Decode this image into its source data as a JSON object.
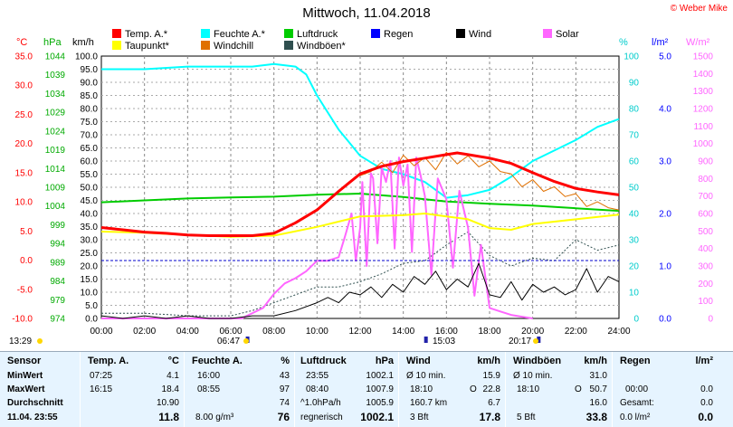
{
  "title": "Mittwoch, 11.04.2018",
  "copyright": "© Weber Mike",
  "colors": {
    "temp": "#ff0000",
    "humidity": "#00ffff",
    "pressure": "#00cc00",
    "rain": "#0000ff",
    "wind": "#000000",
    "solar": "#ff66ff",
    "dewpoint": "#ffff00",
    "windchill": "#e07000",
    "gust": "#2f4f4f"
  },
  "legend": [
    {
      "label": "Temp. A.*",
      "color": "#ff0000"
    },
    {
      "label": "Feuchte A.*",
      "color": "#00ffff"
    },
    {
      "label": "Luftdruck",
      "color": "#00cc00"
    },
    {
      "label": "Regen",
      "color": "#0000ff"
    },
    {
      "label": "Wind",
      "color": "#000000"
    },
    {
      "label": "Solar",
      "color": "#ff66ff"
    },
    {
      "label": "Taupunkt*",
      "color": "#ffff00"
    },
    {
      "label": "Windchill",
      "color": "#e07000"
    },
    {
      "label": "Windböen*",
      "color": "#2f4f4f"
    }
  ],
  "axis_units": {
    "temp": "°C",
    "pressure": "hPa",
    "wind": "km/h",
    "humidity": "%",
    "rain": "l/m²",
    "solar": "W/m²"
  },
  "time_marks": {
    "sunrise": "06:47",
    "sunset": "20:17",
    "mark_left": "13:29",
    "mark_mid": "15:03"
  },
  "chart_data": {
    "type": "line",
    "x_ticks": [
      "00:00",
      "02:00",
      "04:00",
      "06:00",
      "08:00",
      "10:00",
      "12:00",
      "14:00",
      "16:00",
      "18:00",
      "20:00",
      "22:00",
      "24:00"
    ],
    "xlim": [
      0,
      24
    ],
    "axes": {
      "temp": {
        "ylim": [
          -10,
          35
        ],
        "ticks": [
          "35.0",
          "30.0",
          "25.0",
          "20.0",
          "15.0",
          "10.0",
          "5.0",
          "0.0",
          "-5.0",
          "-10.0"
        ]
      },
      "pressure": {
        "ylim": [
          974,
          1044
        ],
        "ticks": [
          "1044",
          "1039",
          "1034",
          "1029",
          "1024",
          "1019",
          "1014",
          "1009",
          "1004",
          "999",
          "994",
          "989",
          "984",
          "979",
          "974"
        ]
      },
      "wind": {
        "ylim": [
          0,
          100
        ],
        "ticks": [
          "100.0",
          "95.0",
          "90.0",
          "85.0",
          "80.0",
          "75.0",
          "70.0",
          "65.0",
          "60.0",
          "55.0",
          "50.0",
          "45.0",
          "40.0",
          "35.0",
          "30.0",
          "25.0",
          "20.0",
          "15.0",
          "10.0",
          "5.0",
          "0.0"
        ]
      },
      "humidity": {
        "ylim": [
          0,
          100
        ],
        "ticks": [
          "100",
          "90",
          "80",
          "70",
          "60",
          "50",
          "40",
          "30",
          "20",
          "10",
          "0"
        ]
      },
      "rain": {
        "ylim": [
          0,
          5
        ],
        "ticks": [
          "5.0",
          "4.0",
          "3.0",
          "2.0",
          "1.0",
          "0.0"
        ]
      },
      "solar": {
        "ylim": [
          0,
          1500
        ],
        "ticks": [
          "1500",
          "1400",
          "1300",
          "1200",
          "1100",
          "1000",
          "900",
          "800",
          "700",
          "600",
          "500",
          "400",
          "300",
          "200",
          "100",
          "0"
        ]
      }
    },
    "series": [
      {
        "name": "Temp. A.*",
        "axis": "temp",
        "color": "#ff0000",
        "width": 3,
        "x": [
          0,
          1,
          2,
          3,
          4,
          5,
          6,
          7,
          7.5,
          8,
          9,
          10,
          11,
          12,
          13,
          14,
          15,
          16,
          16.5,
          17,
          18,
          19,
          20,
          21,
          22,
          23,
          24
        ],
        "y": [
          5.6,
          5.2,
          4.8,
          4.6,
          4.3,
          4.2,
          4.2,
          4.2,
          4.4,
          4.6,
          6.4,
          8.6,
          11.8,
          14.8,
          16.1,
          16.9,
          17.5,
          18.1,
          18.4,
          18.1,
          17.5,
          16.6,
          15.0,
          13.5,
          12.3,
          11.7,
          11.2
        ]
      },
      {
        "name": "Feuchte A.*",
        "axis": "humidity",
        "color": "#00ffff",
        "width": 2,
        "x": [
          0,
          2,
          4,
          6,
          7,
          8,
          9,
          9.5,
          10,
          11,
          12,
          13,
          14,
          15,
          16,
          17,
          18,
          19,
          20,
          21,
          22,
          23,
          24
        ],
        "y": [
          95,
          95,
          96,
          96,
          96,
          97,
          96,
          93,
          85,
          72,
          62,
          57,
          55,
          52,
          46,
          47,
          49,
          54,
          60,
          64,
          68,
          73,
          76
        ]
      },
      {
        "name": "Luftdruck",
        "axis": "pressure",
        "color": "#00cc00",
        "width": 2,
        "x": [
          0,
          2,
          4,
          6,
          8,
          10,
          12,
          14,
          16,
          18,
          20,
          22,
          24
        ],
        "y": [
          1005.0,
          1005.5,
          1006.0,
          1006.3,
          1006.5,
          1007.0,
          1007.3,
          1006.4,
          1005.2,
          1004.6,
          1004.1,
          1003.4,
          1002.7
        ]
      },
      {
        "name": "Taupunkt*",
        "axis": "temp",
        "color": "#ffff00",
        "width": 2,
        "x": [
          0,
          2,
          4,
          6,
          8,
          10,
          12,
          14,
          15,
          16,
          17,
          18,
          19,
          20,
          22,
          24
        ],
        "y": [
          4.9,
          4.7,
          4.3,
          4.0,
          4.2,
          5.7,
          7.5,
          7.7,
          8.0,
          7.5,
          7.0,
          5.5,
          5.2,
          6.2,
          7.0,
          7.8
        ]
      },
      {
        "name": "Windchill",
        "axis": "temp",
        "color": "#e07000",
        "width": 1,
        "x": [
          12,
          12.5,
          13,
          13.5,
          14,
          14.5,
          15,
          15.5,
          16,
          16.5,
          17,
          17.5,
          18,
          18.5,
          19,
          19.5,
          20,
          20.5,
          21,
          21.5,
          22,
          22.5,
          23,
          23.5,
          24
        ],
        "y": [
          14.5,
          15.2,
          16.8,
          15.0,
          18.0,
          16.2,
          17.6,
          15.5,
          18.5,
          16.5,
          17.9,
          16.0,
          17.0,
          15.2,
          14.8,
          12.6,
          13.8,
          11.8,
          12.6,
          10.9,
          11.4,
          9.2,
          10.0,
          9.0,
          8.6
        ]
      },
      {
        "name": "Windböen*",
        "axis": "wind",
        "color": "#2f4f4f",
        "width": 1,
        "dashed": true,
        "x": [
          0,
          2,
          4,
          6,
          7,
          8,
          9,
          10,
          11,
          12,
          13,
          14,
          15,
          16,
          17,
          18,
          19,
          20,
          21,
          22,
          23,
          24
        ],
        "y": [
          2,
          2,
          1,
          1,
          3,
          6,
          9,
          12,
          12,
          14,
          17,
          21,
          22,
          28,
          33,
          24,
          20,
          23,
          22,
          30,
          26,
          28
        ]
      },
      {
        "name": "Wind",
        "axis": "wind",
        "color": "#000000",
        "width": 1,
        "x": [
          0,
          1,
          2,
          3,
          4,
          5,
          6,
          7,
          8,
          9,
          10,
          10.5,
          11,
          11.5,
          12,
          12.5,
          13,
          13.5,
          14,
          14.5,
          15,
          15.5,
          16,
          16.5,
          17,
          17.5,
          18,
          18.5,
          19,
          19.5,
          20,
          20.5,
          21,
          21.5,
          22,
          22.5,
          23,
          23.5,
          24
        ],
        "y": [
          1,
          0,
          1,
          0,
          1,
          0,
          0,
          1,
          1,
          3,
          6,
          8,
          6,
          10,
          9,
          12,
          8,
          13,
          10,
          16,
          13,
          18,
          11,
          15,
          12,
          21,
          9,
          8,
          14,
          7,
          13,
          10,
          12,
          9,
          11,
          19,
          10,
          16,
          14
        ]
      },
      {
        "name": "Solar",
        "axis": "solar",
        "color": "#ff66ff",
        "width": 2,
        "x": [
          0,
          6.5,
          7.5,
          8,
          8.5,
          9,
          9.5,
          10,
          10.5,
          11,
          11.3,
          11.6,
          11.8,
          12,
          12.1,
          12.3,
          12.5,
          12.6,
          12.8,
          13,
          13.2,
          13.4,
          13.6,
          13.8,
          14,
          14.2,
          14.4,
          14.6,
          14.8,
          15,
          15.3,
          15.6,
          16,
          16.3,
          16.6,
          17,
          17.3,
          17.6,
          18,
          18.5,
          19,
          19.5,
          20
        ],
        "y": [
          0,
          0,
          60,
          140,
          200,
          230,
          270,
          330,
          330,
          350,
          470,
          600,
          330,
          520,
          780,
          300,
          830,
          800,
          430,
          860,
          780,
          900,
          400,
          920,
          760,
          880,
          380,
          920,
          820,
          700,
          250,
          800,
          680,
          290,
          730,
          520,
          130,
          420,
          60,
          40,
          20,
          10,
          0
        ]
      }
    ]
  },
  "stats": {
    "sensor": {
      "hd": "Sensor",
      "r1": "MinWert",
      "r2": "MaxWert",
      "r3": "Durchschnitt",
      "r4": "11.04. 23:55"
    },
    "temp": {
      "hd": "Temp. A.",
      "unit": "°C",
      "r1_t": "07:25",
      "r1_v": "4.1",
      "r2_t": "16:15",
      "r2_v": "18.4",
      "r3_v": "10.90",
      "r4_v": "11.8"
    },
    "hum": {
      "hd": "Feuchte A.",
      "unit": "%",
      "r1_t": "16:00",
      "r1_v": "43",
      "r2_t": "08:55",
      "r2_v": "97",
      "r3_v": "74",
      "r4_t": "8.00 g/m³",
      "r4_v": "76"
    },
    "press": {
      "hd": "Luftdruck",
      "unit": "hPa",
      "r1_t": "23:55",
      "r1_v": "1002.1",
      "r2_t": "08:40",
      "r2_v": "1007.9",
      "r3_t": "^1.0hPa/h",
      "r3_v": "1005.9",
      "r4_t": "regnerisch",
      "r4_v": "1002.1"
    },
    "wind": {
      "hd": "Wind",
      "unit": "km/h",
      "r1_t": "Ø 10 min.",
      "r1_v": "15.9",
      "r2_t": "18:10",
      "r2_m": "O",
      "r2_v": "22.8",
      "r3_t": "160.7 km",
      "r3_v": "6.7",
      "r4_t": "3 Bft",
      "r4_v": "17.8"
    },
    "gust": {
      "hd": "Windböen",
      "unit": "km/h",
      "r1_t": "Ø 10 min.",
      "r1_v": "31.0",
      "r2_t": "18:10",
      "r2_m": "O",
      "r2_v": "50.7",
      "r3_v": "16.0",
      "r4_t": "5 Bft",
      "r4_v": "33.8"
    },
    "rain": {
      "hd": "Regen",
      "unit": "l/m²",
      "r2_t": "00:00",
      "r2_v": "0.0",
      "r3_t": "Gesamt:",
      "r3_v": "0.0",
      "r4_t": "0.0 l/m²",
      "r4_v": "0.0"
    }
  }
}
